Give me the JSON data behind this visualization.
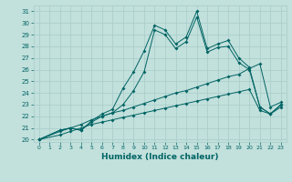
{
  "xlabel": "Humidex (Indice chaleur)",
  "bg_color": "#c2e0dc",
  "grid_color": "#a8ccc8",
  "line_color": "#006464",
  "xlim_min": -0.5,
  "xlim_max": 23.5,
  "ylim_min": 19.8,
  "ylim_max": 31.5,
  "xticks": [
    0,
    1,
    2,
    3,
    4,
    5,
    6,
    7,
    8,
    9,
    10,
    11,
    12,
    13,
    14,
    15,
    16,
    17,
    18,
    19,
    20,
    21,
    22,
    23
  ],
  "yticks": [
    20,
    21,
    22,
    23,
    24,
    25,
    26,
    27,
    28,
    29,
    30,
    31
  ],
  "s1_x": [
    0,
    2,
    3,
    4,
    5,
    6,
    7,
    8,
    9,
    10,
    11,
    12,
    13,
    14,
    15,
    16,
    17,
    18,
    19,
    20,
    21,
    22,
    23
  ],
  "s1_y": [
    20,
    20.8,
    21.0,
    20.8,
    21.6,
    22.2,
    22.6,
    24.4,
    25.8,
    27.6,
    29.8,
    29.4,
    28.2,
    28.8,
    31.0,
    27.8,
    28.2,
    28.5,
    27.0,
    26.2,
    22.8,
    22.2,
    23.0
  ],
  "s2_x": [
    0,
    2,
    3,
    4,
    5,
    6,
    7,
    8,
    9,
    10,
    11,
    12,
    13,
    14,
    15,
    16,
    17,
    18,
    19,
    20,
    21,
    22,
    23
  ],
  "s2_y": [
    20,
    20.8,
    21.0,
    20.8,
    21.5,
    22.0,
    22.3,
    23.0,
    24.2,
    25.8,
    29.4,
    29.0,
    27.8,
    28.4,
    30.5,
    27.5,
    27.9,
    28.0,
    26.6,
    26.0,
    22.8,
    22.2,
    23.0
  ],
  "s3_x": [
    0,
    2,
    3,
    4,
    5,
    6,
    7,
    8,
    9,
    10,
    11,
    12,
    13,
    14,
    15,
    16,
    17,
    18,
    19,
    20,
    21,
    22,
    23
  ],
  "s3_y": [
    20,
    20.7,
    21.0,
    21.3,
    21.7,
    22.0,
    22.3,
    22.5,
    22.8,
    23.1,
    23.4,
    23.7,
    24.0,
    24.2,
    24.5,
    24.8,
    25.1,
    25.4,
    25.6,
    26.1,
    26.5,
    22.8,
    23.2
  ],
  "s4_x": [
    0,
    2,
    3,
    4,
    5,
    6,
    7,
    8,
    9,
    10,
    11,
    12,
    13,
    14,
    15,
    16,
    17,
    18,
    19,
    20,
    21,
    22,
    23
  ],
  "s4_y": [
    20,
    20.4,
    20.7,
    21.0,
    21.3,
    21.5,
    21.7,
    21.9,
    22.1,
    22.3,
    22.5,
    22.7,
    22.9,
    23.1,
    23.3,
    23.5,
    23.7,
    23.9,
    24.1,
    24.3,
    22.5,
    22.2,
    22.8
  ]
}
